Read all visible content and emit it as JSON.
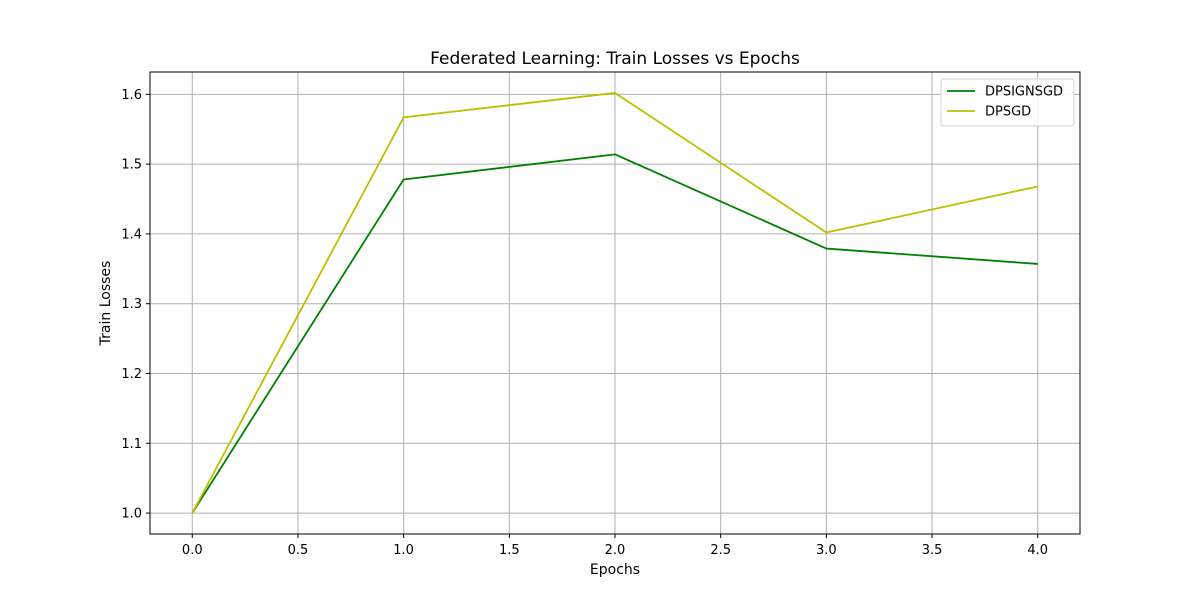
{
  "chart_data": {
    "type": "line",
    "title": "Federated Learning: Train Losses vs Epochs",
    "xlabel": "Epochs",
    "ylabel": "Train Losses",
    "x": [
      0,
      1,
      2,
      3,
      4
    ],
    "xlim": [
      -0.2,
      4.2
    ],
    "ylim": [
      0.97,
      1.632
    ],
    "xticks": [
      0.0,
      0.5,
      1.0,
      1.5,
      2.0,
      2.5,
      3.0,
      3.5,
      4.0
    ],
    "yticks": [
      1.0,
      1.1,
      1.2,
      1.3,
      1.4,
      1.5,
      1.6
    ],
    "grid": true,
    "legend_position": "top-right",
    "series": [
      {
        "name": "DPSIGNSGD",
        "color": "#008000",
        "values": [
          1.0,
          1.478,
          1.514,
          1.379,
          1.357
        ]
      },
      {
        "name": "DPSGD",
        "color": "#bfbf00",
        "values": [
          1.0,
          1.567,
          1.602,
          1.402,
          1.468
        ]
      }
    ]
  }
}
